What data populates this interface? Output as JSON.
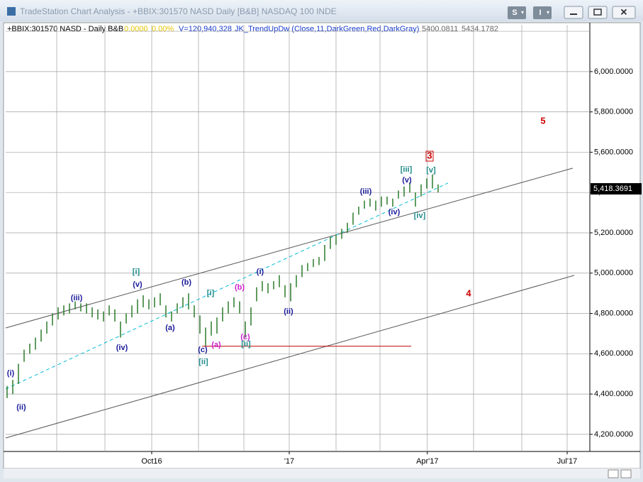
{
  "window": {
    "title": "TradeStation Chart Analysis - +BBIX:301570 NASD Daily [B&B] NASDAQ 100 INDE",
    "buttons": [
      "S",
      "I"
    ]
  },
  "chart_data": {
    "type": "ohlc",
    "header": {
      "symbol": "+BBIX:301570 NASD - Daily  B&B",
      "change": "0.0000",
      "change_pct": "0.00%",
      "volume": "V=120,940,328",
      "indicator": "JK_TrendUpDw  (Close,11,DarkGreen,Red,DarkGray)",
      "ind_value1": "5400.0811",
      "ind_value2": "5434.1782"
    },
    "color": "#2a7a2a",
    "high": [
      4440,
      4470,
      4550,
      4620,
      4650,
      4680,
      4720,
      4760,
      4800,
      4830,
      4840,
      4850,
      4860,
      4850,
      4850,
      4830,
      4820,
      4810,
      4840,
      4820,
      4760,
      4800,
      4840,
      4870,
      4890,
      4870,
      4880,
      4900,
      4840,
      4810,
      4850,
      4880,
      4900,
      4840,
      4790,
      4730,
      4760,
      4780,
      4830,
      4860,
      4880,
      4860,
      4760,
      4830,
      4930,
      4960,
      4950,
      4960,
      4990,
      4940,
      4950,
      4990,
      5040,
      5050,
      5070,
      5080,
      5140,
      5180,
      5190,
      5220,
      5250,
      5300,
      5330,
      5360,
      5370,
      5360,
      5380,
      5380,
      5370,
      5410,
      5430,
      5450,
      5400,
      5440,
      5470,
      5490,
      5440
    ],
    "low": [
      4380,
      4400,
      4450,
      4560,
      4600,
      4620,
      4660,
      4700,
      4740,
      4770,
      4790,
      4800,
      4820,
      4810,
      4800,
      4780,
      4770,
      4760,
      4790,
      4760,
      4680,
      4750,
      4780,
      4800,
      4830,
      4820,
      4830,
      4840,
      4780,
      4760,
      4800,
      4830,
      4820,
      4780,
      4700,
      4640,
      4690,
      4700,
      4760,
      4800,
      4830,
      4800,
      4680,
      4740,
      4860,
      4910,
      4900,
      4920,
      4930,
      4880,
      4860,
      4930,
      4980,
      5010,
      5030,
      5040,
      5060,
      5120,
      5140,
      5170,
      5200,
      5240,
      5290,
      5320,
      5330,
      5310,
      5330,
      5340,
      5330,
      5370,
      5380,
      5400,
      5330,
      5380,
      5420,
      5420,
      5400
    ],
    "xlim": [
      -0.25,
      102.75
    ],
    "xticks": [
      {
        "value": 25.5,
        "label": "Oct16"
      },
      {
        "value": 49.75,
        "label": "'17"
      },
      {
        "value": 74.1,
        "label": "Apr'17"
      },
      {
        "value": 98.75,
        "label": "Jul'17"
      }
    ],
    "xgrid": [
      8.75,
      17.25,
      25.5,
      33.75,
      41.75,
      49.75,
      58,
      65.75,
      74.1,
      82.25,
      90.75,
      98.75
    ],
    "ylim": [
      4115,
      6232
    ],
    "yticks": [
      {
        "value": 4200,
        "label": "4,200.0000"
      },
      {
        "value": 4400,
        "label": "4,400.0000"
      },
      {
        "value": 4600,
        "label": "4,600.0000"
      },
      {
        "value": 4800,
        "label": "4,800.0000"
      },
      {
        "value": 5000,
        "label": "5,000.0000"
      },
      {
        "value": 5200,
        "label": "5,200.0000"
      },
      {
        "value": 5400,
        "label": "5,400.0000"
      },
      {
        "value": 5600,
        "label": "5,600.0000"
      },
      {
        "value": 5800,
        "label": "5,800.0000"
      },
      {
        "value": 6000,
        "label": "6,000.0000"
      }
    ],
    "ygrid": [
      4200,
      4400,
      4600,
      4800,
      5000,
      5200,
      5400,
      5600,
      5800,
      6000,
      6200
    ],
    "last_price": {
      "value": 5418.3691,
      "label": "5,418.3691"
    },
    "trendlines": [
      {
        "x": [
          -0.25,
          99.75
        ],
        "y": [
          4728,
          5521
        ],
        "color": "#555555",
        "dash": false
      },
      {
        "x": [
          -0.25,
          100
        ],
        "y": [
          4182,
          4989
        ],
        "color": "#555555",
        "dash": false
      },
      {
        "x": [
          -0.25,
          77.75
        ],
        "y": [
          4425,
          5447
        ],
        "color": "#00bcd4",
        "dash": true
      },
      {
        "x": [
          34.4,
          71.25
        ],
        "y": [
          4637,
          4637
        ],
        "color": "#c00000",
        "dash": false
      }
    ],
    "wave_labels": [
      "(i)",
      "(ii)",
      "(iii)",
      "[i]",
      "(v)",
      "(iv)",
      "(a)",
      "(b)",
      "[i]",
      "(c)",
      "[ii]",
      "(a)",
      "(b)",
      "(c)",
      "[ii]",
      "(i)",
      "(ii)",
      "(iii)",
      "[iii]",
      "(v)",
      "(iv)",
      "[iv]",
      "[v]",
      "3",
      "5",
      "4"
    ]
  }
}
